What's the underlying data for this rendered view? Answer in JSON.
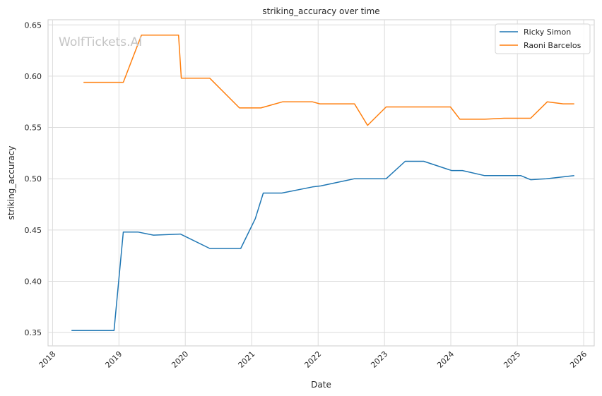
{
  "chart_data": {
    "type": "line",
    "title": "striking_accuracy over time",
    "xlabel": "Date",
    "ylabel": "striking_accuracy",
    "watermark": "WolfTickets.AI",
    "grid": true,
    "legend_position": "top-right",
    "xlim": [
      "2017-12-07",
      "2026-02-28"
    ],
    "ylim": [
      0.337,
      0.655
    ],
    "x_ticks": [
      "2018",
      "2019",
      "2020",
      "2021",
      "2022",
      "2023",
      "2024",
      "2025",
      "2026"
    ],
    "y_ticks": [
      "0.35",
      "0.40",
      "0.45",
      "0.50",
      "0.55",
      "0.60",
      "0.65"
    ],
    "series": [
      {
        "name": "Ricky Simon",
        "color": "#1f77b4",
        "points": [
          [
            "2018-04-15",
            0.352
          ],
          [
            "2018-12-05",
            0.352
          ],
          [
            "2019-01-25",
            0.448
          ],
          [
            "2019-04-15",
            0.448
          ],
          [
            "2019-07-10",
            0.445
          ],
          [
            "2019-12-05",
            0.446
          ],
          [
            "2020-05-15",
            0.432
          ],
          [
            "2020-11-01",
            0.432
          ],
          [
            "2021-01-20",
            0.461
          ],
          [
            "2021-03-05",
            0.486
          ],
          [
            "2021-06-15",
            0.486
          ],
          [
            "2021-12-01",
            0.492
          ],
          [
            "2022-01-15",
            0.493
          ],
          [
            "2022-07-20",
            0.5
          ],
          [
            "2023-01-10",
            0.5
          ],
          [
            "2023-04-25",
            0.517
          ],
          [
            "2023-08-05",
            0.517
          ],
          [
            "2024-01-05",
            0.508
          ],
          [
            "2024-03-05",
            0.508
          ],
          [
            "2024-07-05",
            0.503
          ],
          [
            "2025-01-20",
            0.503
          ],
          [
            "2025-03-15",
            0.499
          ],
          [
            "2025-06-10",
            0.5
          ],
          [
            "2025-11-10",
            0.503
          ]
        ]
      },
      {
        "name": "Raoni Barcelos",
        "color": "#ff7f0e",
        "points": [
          [
            "2018-06-20",
            0.594
          ],
          [
            "2019-01-25",
            0.594
          ],
          [
            "2019-05-05",
            0.64
          ],
          [
            "2019-11-25",
            0.64
          ],
          [
            "2019-12-10",
            0.598
          ],
          [
            "2020-05-15",
            0.598
          ],
          [
            "2020-10-25",
            0.569
          ],
          [
            "2021-02-20",
            0.569
          ],
          [
            "2021-06-20",
            0.575
          ],
          [
            "2021-11-30",
            0.575
          ],
          [
            "2022-01-10",
            0.573
          ],
          [
            "2022-07-20",
            0.573
          ],
          [
            "2022-09-30",
            0.552
          ],
          [
            "2023-01-10",
            0.57
          ],
          [
            "2023-05-20",
            0.57
          ],
          [
            "2023-08-10",
            0.57
          ],
          [
            "2023-12-30",
            0.57
          ],
          [
            "2024-02-20",
            0.558
          ],
          [
            "2024-07-05",
            0.558
          ],
          [
            "2024-10-20",
            0.559
          ],
          [
            "2025-03-15",
            0.559
          ],
          [
            "2025-06-15",
            0.575
          ],
          [
            "2025-09-10",
            0.573
          ],
          [
            "2025-11-10",
            0.573
          ]
        ]
      }
    ]
  }
}
